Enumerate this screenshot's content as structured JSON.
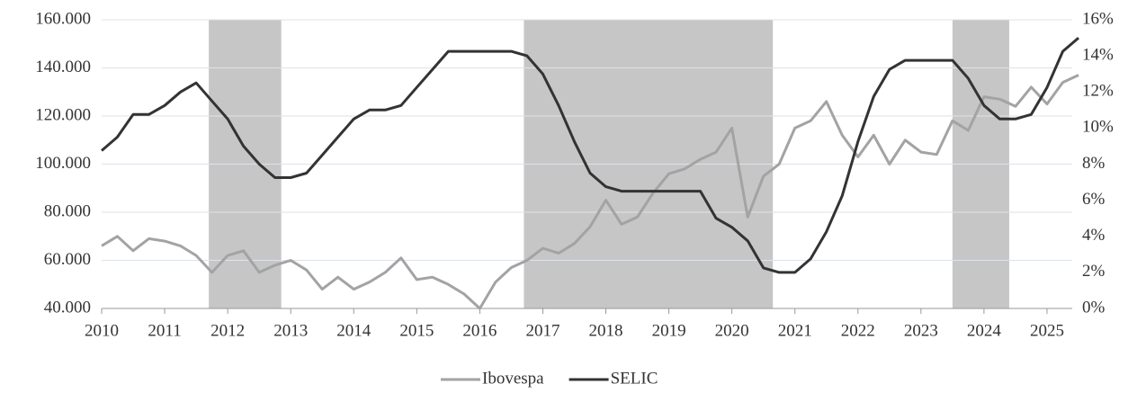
{
  "chart_data": {
    "type": "line",
    "x": [
      2010,
      2010.25,
      2010.5,
      2010.75,
      2011,
      2011.25,
      2011.5,
      2011.75,
      2012,
      2012.25,
      2012.5,
      2012.75,
      2013,
      2013.25,
      2013.5,
      2013.75,
      2014,
      2014.25,
      2014.5,
      2014.75,
      2015,
      2015.25,
      2015.5,
      2015.75,
      2016,
      2016.25,
      2016.5,
      2016.75,
      2017,
      2017.25,
      2017.5,
      2017.75,
      2018,
      2018.25,
      2018.5,
      2018.75,
      2019,
      2019.25,
      2019.5,
      2019.75,
      2020,
      2020.25,
      2020.5,
      2020.75,
      2021,
      2021.25,
      2021.5,
      2021.75,
      2022,
      2022.25,
      2022.5,
      2022.75,
      2023,
      2023.25,
      2023.5,
      2023.75,
      2024,
      2024.25,
      2024.5,
      2024.75,
      2025,
      2025.25,
      2025.5
    ],
    "series": [
      {
        "name": "Ibovespa",
        "color": "#a3a3a3",
        "values": [
          66000,
          70000,
          64000,
          69000,
          68000,
          66000,
          62000,
          55000,
          62000,
          64000,
          55000,
          58000,
          60000,
          56000,
          48000,
          53000,
          48000,
          51000,
          55000,
          61000,
          52000,
          53000,
          50000,
          46000,
          40000,
          51000,
          57000,
          60000,
          65000,
          63000,
          67000,
          74000,
          85000,
          75000,
          78000,
          88000,
          96000,
          98000,
          102000,
          105000,
          115000,
          78000,
          95000,
          100000,
          115000,
          118000,
          126000,
          112000,
          103000,
          112000,
          100000,
          110000,
          105000,
          104000,
          118000,
          114000,
          128000,
          127000,
          124000,
          132000,
          125000,
          134000,
          137000
        ]
      },
      {
        "name": "SELIC",
        "color": "#333333",
        "axis": "y2",
        "values": [
          8.75,
          9.5,
          10.75,
          10.75,
          11.25,
          12,
          12.5,
          11.5,
          10.5,
          9,
          8,
          7.25,
          7.25,
          7.5,
          8.5,
          9.5,
          10.5,
          11,
          11,
          11.25,
          12.25,
          13.25,
          14.25,
          14.25,
          14.25,
          14.25,
          14.25,
          14,
          13,
          11.25,
          9.25,
          7.5,
          6.75,
          6.5,
          6.5,
          6.5,
          6.5,
          6.5,
          6.5,
          5,
          4.5,
          3.75,
          2.25,
          2,
          2,
          2.75,
          4.25,
          6.25,
          9.25,
          11.75,
          13.25,
          13.75,
          13.75,
          13.75,
          13.75,
          12.75,
          11.25,
          10.5,
          10.5,
          10.75,
          12.25,
          14.25,
          15
        ]
      }
    ],
    "shaded_periods": [
      [
        2011.7,
        2012.85
      ],
      [
        2016.7,
        2020.65
      ],
      [
        2023.5,
        2024.4
      ]
    ],
    "xlim": [
      2010,
      2025.6
    ],
    "xticks": [
      2010,
      2011,
      2012,
      2013,
      2014,
      2015,
      2016,
      2017,
      2018,
      2019,
      2020,
      2021,
      2022,
      2023,
      2024,
      2025
    ],
    "ylim": [
      40000,
      160000
    ],
    "yticks": [
      {
        "value": 40000,
        "label": "40.000"
      },
      {
        "value": 60000,
        "label": "60.000"
      },
      {
        "value": 80000,
        "label": "80.000"
      },
      {
        "value": 100000,
        "label": "100.000"
      },
      {
        "value": 120000,
        "label": "120.000"
      },
      {
        "value": 140000,
        "label": "140.000"
      },
      {
        "value": 160000,
        "label": "160.000"
      }
    ],
    "y2lim": [
      0,
      16
    ],
    "y2ticks": [
      {
        "value": 0,
        "label": "0%"
      },
      {
        "value": 2,
        "label": "2%"
      },
      {
        "value": 4,
        "label": "4%"
      },
      {
        "value": 6,
        "label": "6%"
      },
      {
        "value": 8,
        "label": "8%"
      },
      {
        "value": 10,
        "label": "10%"
      },
      {
        "value": 12,
        "label": "12%"
      },
      {
        "value": 14,
        "label": "14%"
      },
      {
        "value": 16,
        "label": "16%"
      }
    ],
    "grid": true,
    "legend": "bottom"
  }
}
